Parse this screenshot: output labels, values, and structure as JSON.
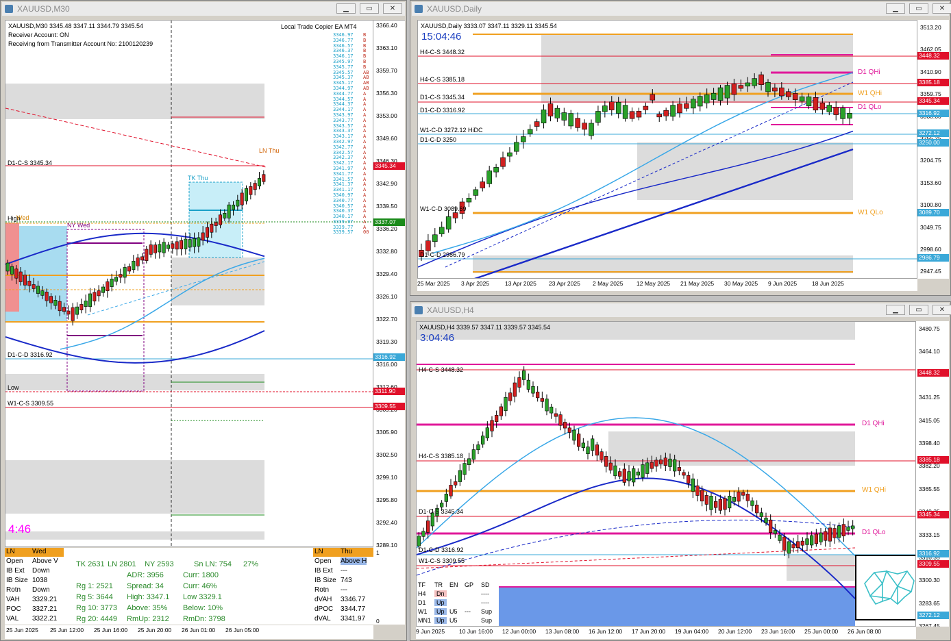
{
  "m30": {
    "title": "XAUUSD,M30",
    "header": "XAUUSD,M30   3345.48 3347.11 3344.79 3345.54",
    "receiver": "Receiver Account: ON",
    "transmitter": "Receiving from Transmitter Account No: 2100120239",
    "ea": "Local Trade Copier EA MT4",
    "timer": "4:46",
    "yticks": [
      "3366.40",
      "3363.10",
      "3359.70",
      "3356.30",
      "3353.00",
      "3349.60",
      "3346.30",
      "3342.90",
      "3339.50",
      "3336.20",
      "3332.80",
      "3329.40",
      "3326.10",
      "3322.70",
      "3319.30",
      "3316.00",
      "3312.60",
      "3309.20",
      "3305.90",
      "3302.50",
      "3299.10",
      "3295.80",
      "3292.40",
      "3289.10"
    ],
    "xticks": [
      "25 Jun 2025",
      "25 Jun 12:00",
      "25 Jun 16:00",
      "25 Jun 20:00",
      "26 Jun 01:00",
      "26 Jun 05:00"
    ],
    "labels": {
      "d1cs": "D1-C-S 3345.34",
      "d1cd": "D1-C-D 3316.92",
      "w1cs": "W1-C-S 3309.55",
      "high": "High",
      "wed": "Wed",
      "nywed": "NY Wed",
      "tkthu": "TK Thu",
      "lnthu": "LN Thu",
      "low": "Low"
    },
    "tags": {
      "bid": "3345.34",
      "d1cd": "3316.92",
      "low": "3311.90",
      "w1cs": "3309.55",
      "last": "3337.07"
    },
    "copier_prices": [
      "3346.97",
      "3346.77",
      "3346.57",
      "3346.37",
      "3346.17",
      "3345.97",
      "3345.77",
      "3345.57",
      "3345.37",
      "3345.17",
      "3344.97",
      "3344.77",
      "3344.57",
      "3344.37",
      "3344.17",
      "3343.97",
      "3343.77",
      "3343.57",
      "3343.37",
      "3343.17",
      "3342.97",
      "3342.77",
      "3342.57",
      "3342.37",
      "3342.17",
      "3341.97",
      "3341.77",
      "3341.57",
      "3341.37",
      "3341.17",
      "3340.97",
      "3340.77",
      "3340.57",
      "3340.37",
      "3340.17",
      "3339.97",
      "3339.77",
      "3339.57"
    ],
    "copier_flags": [
      "B",
      "B",
      "B",
      "B",
      "B",
      "B",
      "B",
      "AB",
      "AB",
      "AB",
      "AB",
      "A",
      "A",
      "A",
      "A",
      "A",
      "A",
      "A",
      "A",
      "A",
      "A",
      "A",
      "A",
      "A",
      "A",
      "A",
      "A",
      "A",
      "A",
      "A",
      "A",
      "A",
      "A",
      "A",
      "A",
      "A",
      "A",
      "00"
    ]
  },
  "panel_left": {
    "header": [
      "LN",
      "Wed"
    ],
    "rows": [
      [
        "Open",
        "Above V"
      ],
      [
        "IB Ext",
        "Down"
      ],
      [
        "IB Size",
        "1038"
      ],
      [
        "Rotn",
        "Down"
      ],
      [
        "VAH",
        "3329.21"
      ],
      [
        "POC",
        "3327.21"
      ],
      [
        "VAL",
        "3322.21"
      ]
    ]
  },
  "panel_stats": {
    "line1": [
      "TK  2631",
      "LN  2801",
      "NY  2593",
      "Sn LN:  754",
      "27%"
    ],
    "rows": [
      [
        "",
        "ADR:   3956",
        "Curr:   1800"
      ],
      [
        "Rg 1:   2521",
        "Spread:  34",
        "Curr:    46%"
      ],
      [
        "Rg 5:   3644",
        "High:  3347.1",
        "Low    3329.1"
      ],
      [
        "Rg 10: 3773",
        "Above:  35%",
        "Below:  10%"
      ],
      [
        "Rg 20: 4449",
        "RmUp: 2312",
        "RmDn: 3798"
      ]
    ]
  },
  "panel_right": {
    "header": [
      "LN",
      "Thu"
    ],
    "rows": [
      [
        "Open",
        "Above H"
      ],
      [
        "IB Ext",
        "---"
      ],
      [
        "IB Size",
        "743"
      ],
      [
        "Rotn",
        "---"
      ],
      [
        "dVAH",
        "3346.77"
      ],
      [
        "dPOC",
        "3344.77"
      ],
      [
        "dVAL",
        "3341.97"
      ]
    ]
  },
  "daily": {
    "title": "XAUUSD,Daily",
    "header": "XAUUSD,Daily   3333.07 3347.11 3329.11 3345.54",
    "timer": "15:04:46",
    "yticks": [
      "3513.20",
      "3462.05",
      "3410.90",
      "3359.75",
      "3308.60",
      "3255.25",
      "3204.75",
      "3153.60",
      "3100.80",
      "3049.75",
      "2998.60",
      "2947.45"
    ],
    "xticks": [
      "25 Mar 2025",
      "3 Apr 2025",
      "13 Apr 2025",
      "23 Apr 2025",
      "2 May 2025",
      "12 May 2025",
      "21 May 2025",
      "30 May 2025",
      "9 Jun 2025",
      "18 Jun 2025"
    ],
    "labels": {
      "h4cs1": "H4-C-S 3448.32",
      "h4cs2": "H4-C-S 3385.18",
      "d1cs": "D1-C-S 3345.34",
      "d1cd": "D1-C-D 3316.92",
      "w1cd": "W1-C-D 3272.12 HiDC",
      "d1cd2": "D1-C-D 3250",
      "w1cd2": "W1-C-D 3089.69",
      "d1cd3": "D1-C-D 2986.79",
      "d1qhi": "D1 QHi",
      "w1qhi": "W1 QHi",
      "d1qlo": "D1 QLo",
      "w1qlo": "W1 QLo"
    },
    "tags": {
      "t1": "3448.32",
      "t2": "3385.18",
      "t3": "3345.34",
      "t4": "3316.92",
      "t5": "3272.12",
      "t6": "3250.00",
      "t7": "3089.70",
      "t8": "2986.79"
    }
  },
  "h4": {
    "title": "XAUUSD,H4",
    "header": "XAUUSD,H4   3339.57 3347.11 3339.57 3345.54",
    "timer": "3:04:46",
    "yticks": [
      "3480.75",
      "3464.10",
      "3448.05",
      "3431.25",
      "3415.05",
      "3398.40",
      "3382.20",
      "3365.55",
      "3349.35",
      "3333.15",
      "3316.35",
      "3300.30",
      "3283.65",
      "3267.45"
    ],
    "xticks": [
      "9 Jun 2025",
      "10 Jun 16:00",
      "12 Jun 00:00",
      "13 Jun 08:00",
      "16 Jun 12:00",
      "17 Jun 20:00",
      "19 Jun 04:00",
      "20 Jun 12:00",
      "23 Jun 16:00",
      "25 Jun 00:00",
      "26 Jun 08:00"
    ],
    "labels": {
      "h4cs1": "H4-C-S 3448.32",
      "h4cs2": "H4-C-S 3385.18",
      "d1cs": "D1-C-S 3345.34",
      "d1cd": "D1-C-D 3316.92",
      "w1cs": "W1-C-S 3309.55",
      "d1qhi": "D1 QHi",
      "w1qhi": "W1 QHi",
      "d1qlo": "D1 QLo"
    },
    "tags": {
      "t1": "3448.32",
      "t2": "3385.18",
      "t3": "3345.34",
      "t4": "3316.92",
      "t5": "3309.55",
      "t6": "3272.12"
    },
    "trend_table": {
      "header": [
        "TF",
        "TR",
        "EN",
        "GP",
        "SD"
      ],
      "rows": [
        [
          "H4",
          "Dn",
          "",
          "",
          "----"
        ],
        [
          "D1",
          "Up",
          "",
          "",
          "----"
        ],
        [
          "W1",
          "Up",
          "U5",
          "---",
          "Sup"
        ],
        [
          "MN1",
          "Up",
          "U5",
          "",
          "Sup"
        ]
      ]
    }
  }
}
